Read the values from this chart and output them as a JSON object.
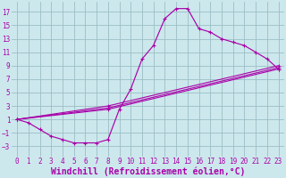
{
  "bg_color": "#cce8ec",
  "grid_color": "#9bbec6",
  "line_color": "#aa00aa",
  "xlim": [
    -0.5,
    23.5
  ],
  "ylim": [
    -4.5,
    18.5
  ],
  "xticks": [
    0,
    1,
    2,
    3,
    4,
    5,
    6,
    7,
    8,
    9,
    10,
    11,
    12,
    13,
    14,
    15,
    16,
    17,
    18,
    19,
    20,
    21,
    22,
    23
  ],
  "yticks": [
    -3,
    -1,
    1,
    3,
    5,
    7,
    9,
    11,
    13,
    15,
    17
  ],
  "xlabel": "Windchill (Refroidissement éolien,°C)",
  "tick_fontsize": 5.5,
  "xlabel_fontsize": 7,
  "curve1_x": [
    0,
    1,
    2,
    3,
    4,
    5,
    6,
    7,
    8,
    9,
    10,
    11,
    12,
    13,
    14,
    15,
    16,
    17,
    18,
    19,
    20,
    21,
    22,
    23
  ],
  "curve1_y": [
    1,
    0.5,
    -0.5,
    -1.5,
    -2.0,
    -2.5,
    -2.5,
    -2.5,
    -2.0,
    2.5,
    5.5,
    10.0,
    12.0,
    16.0,
    17.5,
    17.5,
    14.5,
    14.0,
    13.0,
    12.5,
    12.0,
    11.0,
    10.0,
    8.5
  ],
  "diag_lines": [
    {
      "x": [
        0,
        8,
        23
      ],
      "y": [
        1,
        2.5,
        8.5
      ]
    },
    {
      "x": [
        0,
        8,
        23
      ],
      "y": [
        1,
        2.7,
        8.7
      ]
    },
    {
      "x": [
        0,
        8,
        23
      ],
      "y": [
        1,
        3.0,
        9.0
      ]
    }
  ]
}
